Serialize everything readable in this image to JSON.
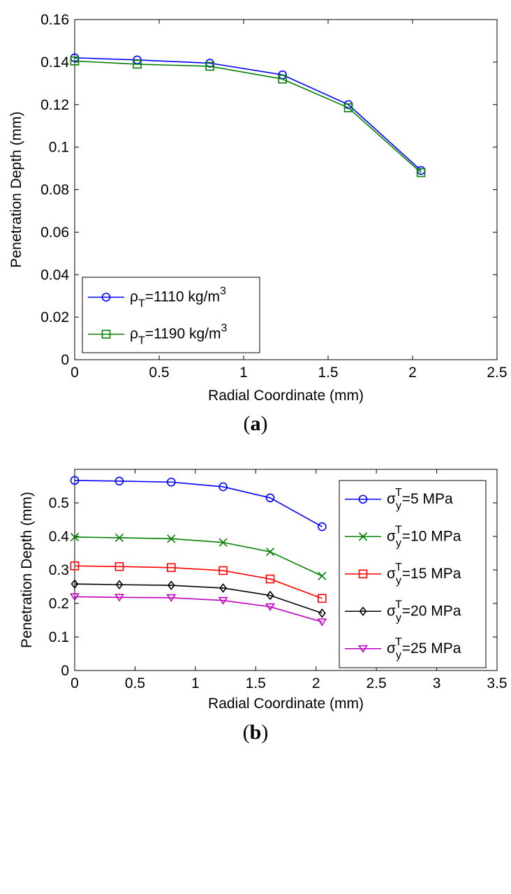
{
  "figure": {
    "caption_a": "(a)",
    "caption_a_letter": "a",
    "caption_b_letter": "b"
  },
  "chart_data": [
    {
      "id": "a",
      "type": "line",
      "caption": "(a)",
      "xlabel": "Radial Coordinate (mm)",
      "ylabel": "Penetration Depth (mm)",
      "xlim": [
        0,
        2.5
      ],
      "ylim": [
        0,
        0.16
      ],
      "xticks": [
        0,
        0.5,
        1,
        1.5,
        2,
        2.5
      ],
      "xtick_labels": [
        "0",
        "0.5",
        "1",
        "1.5",
        "2",
        "2.5"
      ],
      "yticks": [
        0,
        0.02,
        0.04,
        0.06,
        0.08,
        0.1,
        0.12,
        0.14,
        0.16
      ],
      "ytick_labels": [
        "0",
        "0.02",
        "0.04",
        "0.06",
        "0.08",
        "0.1",
        "0.12",
        "0.14",
        "0.16"
      ],
      "grid": false,
      "legend_position": "bottom-left",
      "x": [
        0,
        0.37,
        0.8,
        1.23,
        1.62,
        2.05
      ],
      "series": [
        {
          "name": "ρT=1110 kg/m3",
          "label_base": "ρ",
          "label_sub": "T",
          "label_mid": "=1110 kg/m",
          "label_sup": "3",
          "color": "#0000ff",
          "marker": "circle",
          "values": [
            0.142,
            0.141,
            0.1395,
            0.134,
            0.12,
            0.089
          ]
        },
        {
          "name": "ρT=1190 kg/m3",
          "label_base": "ρ",
          "label_sub": "T",
          "label_mid": "=1190 kg/m",
          "label_sup": "3",
          "color": "#008000",
          "marker": "square",
          "values": [
            0.1405,
            0.139,
            0.138,
            0.132,
            0.1185,
            0.088
          ]
        }
      ]
    },
    {
      "id": "b",
      "type": "line",
      "caption": "(b)",
      "xlabel": "Radial Coordinate (mm)",
      "ylabel": "Penetration Depth (mm)",
      "xlim": [
        0,
        3.5
      ],
      "ylim": [
        0,
        0.6
      ],
      "xticks": [
        0,
        0.5,
        1,
        1.5,
        2,
        2.5,
        3,
        3.5
      ],
      "xtick_labels": [
        "0",
        "0.5",
        "1",
        "1.5",
        "2",
        "2.5",
        "3",
        "3.5"
      ],
      "yticks": [
        0,
        0.1,
        0.2,
        0.3,
        0.4,
        0.5
      ],
      "ytick_labels": [
        "0",
        "0.1",
        "0.2",
        "0.3",
        "0.4",
        "0.5"
      ],
      "grid": false,
      "legend_position": "right",
      "x": [
        0,
        0.37,
        0.8,
        1.23,
        1.62,
        2.05
      ],
      "series": [
        {
          "name": "σyT=5 MPa",
          "label_base": "σ",
          "label_sub": "y",
          "label_sup": "T",
          "label_mid": "=5 MPa",
          "color": "#0000ff",
          "marker": "circle",
          "values": [
            0.567,
            0.565,
            0.562,
            0.548,
            0.515,
            0.429
          ]
        },
        {
          "name": "σyT=10 MPa",
          "label_base": "σ",
          "label_sub": "y",
          "label_sup": "T",
          "label_mid": "=10 MPa",
          "color": "#008000",
          "marker": "x",
          "values": [
            0.398,
            0.396,
            0.393,
            0.382,
            0.354,
            0.282
          ]
        },
        {
          "name": "σyT=15 MPa",
          "label_base": "σ",
          "label_sub": "y",
          "label_sup": "T",
          "label_mid": "=15 MPa",
          "color": "#ff0000",
          "marker": "square",
          "values": [
            0.312,
            0.31,
            0.307,
            0.298,
            0.273,
            0.215
          ]
        },
        {
          "name": "σyT=20 MPa",
          "label_base": "σ",
          "label_sub": "y",
          "label_sup": "T",
          "label_mid": "=20 MPa",
          "color": "#000000",
          "marker": "diamond",
          "values": [
            0.258,
            0.256,
            0.254,
            0.246,
            0.224,
            0.171
          ]
        },
        {
          "name": "σyT=25 MPa",
          "label_base": "σ",
          "label_sub": "y",
          "label_sup": "T",
          "label_mid": "=25 MPa",
          "color": "#bf00bf",
          "marker": "triangle-down",
          "values": [
            0.22,
            0.218,
            0.217,
            0.209,
            0.19,
            0.145
          ]
        }
      ]
    }
  ]
}
